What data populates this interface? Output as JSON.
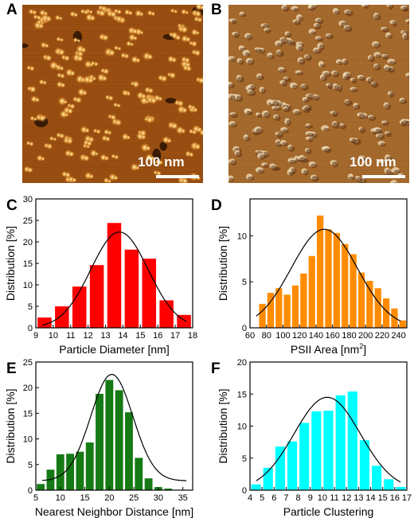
{
  "images": [
    {
      "panel": "A",
      "scale_label": "100 nm",
      "style": "afm-height"
    },
    {
      "panel": "B",
      "scale_label": "100 nm",
      "style": "afm-amplitude"
    }
  ],
  "chart_data": [
    {
      "panel": "C",
      "type": "bar",
      "bar_color": "#ff0000",
      "xlabel": "Particle Diameter [nm]",
      "ylabel": "Distribution [%]",
      "xlim": [
        9,
        18
      ],
      "ylim": [
        0,
        30
      ],
      "xticks": [
        9,
        10,
        11,
        12,
        13,
        14,
        15,
        16,
        17,
        18
      ],
      "yticks": [
        0,
        5,
        10,
        15,
        20,
        25,
        30
      ],
      "bin_width": 1,
      "x": [
        9.5,
        10.5,
        11.5,
        12.5,
        13.5,
        14.5,
        15.5,
        16.5,
        17.5
      ],
      "values": [
        2.4,
        5.0,
        9.6,
        14.6,
        24.4,
        18.2,
        16.1,
        6.4,
        3.0
      ],
      "fit": {
        "type": "gaussian",
        "center": 13.8,
        "sigma": 1.65,
        "amplitude": 22.3
      }
    },
    {
      "panel": "D",
      "type": "bar",
      "bar_color": "#ff8c00",
      "xlabel": "PSII Area [nm",
      "xlabel_sup": "2",
      "xlabel_end": "]",
      "ylabel": "Distribution [%]",
      "xlim": [
        60,
        250
      ],
      "ylim": [
        0,
        14
      ],
      "xticks": [
        60,
        80,
        100,
        120,
        140,
        160,
        180,
        200,
        220,
        240
      ],
      "yticks": [
        0,
        5,
        10
      ],
      "bin_width": 10,
      "x": [
        75,
        85,
        95,
        105,
        115,
        125,
        135,
        145,
        155,
        165,
        175,
        185,
        195,
        205,
        215,
        225,
        235,
        245
      ],
      "values": [
        2.6,
        3.8,
        4.3,
        3.6,
        4.6,
        5.9,
        7.8,
        12.2,
        10.7,
        10.3,
        9.1,
        8.0,
        6.0,
        5.1,
        4.3,
        3.2,
        2.1,
        0.8
      ],
      "fit": {
        "type": "gaussian",
        "center": 150,
        "sigma": 40,
        "amplitude": 10.7
      }
    },
    {
      "panel": "E",
      "type": "bar",
      "bar_color": "#157a15",
      "xlabel": "Nearest Neighbor Distance [nm]",
      "ylabel": "Distribution [%]",
      "xlim": [
        5,
        37
      ],
      "ylim": [
        0,
        25
      ],
      "xticks": [
        5,
        10,
        15,
        20,
        25,
        30,
        35
      ],
      "yticks": [
        0,
        5,
        10,
        15,
        20,
        25
      ],
      "bin_width": 2,
      "x": [
        6,
        8,
        10,
        12,
        14,
        16,
        18,
        20,
        22,
        24,
        26,
        28,
        30,
        32,
        34
      ],
      "values": [
        1.2,
        4.0,
        7.0,
        7.1,
        7.5,
        9.3,
        18.8,
        21.5,
        19.5,
        15.2,
        6.3,
        2.3,
        0.6,
        0.3,
        0
      ],
      "fit": {
        "type": "gaussian",
        "center": 20.5,
        "sigma": 4.3,
        "amplitude": 20.8,
        "baseline": 1.8
      }
    },
    {
      "panel": "F",
      "type": "bar",
      "bar_color": "#00ffff",
      "xlabel": "Particle Clustering",
      "ylabel": "Distribution [%]",
      "xlim": [
        4,
        17
      ],
      "ylim": [
        0,
        20
      ],
      "xticks": [
        4,
        5,
        6,
        7,
        8,
        9,
        10,
        11,
        12,
        13,
        14,
        15,
        16,
        17
      ],
      "yticks": [
        0,
        5,
        10,
        15,
        20
      ],
      "bin_width": 1,
      "x": [
        4.5,
        5.5,
        6.5,
        7.5,
        8.5,
        9.5,
        10.5,
        11.5,
        12.5,
        13.5,
        14.5,
        15.5,
        16.5
      ],
      "values": [
        0.9,
        3.5,
        6.8,
        7.6,
        10.5,
        12.3,
        12.4,
        14.8,
        15.4,
        7.8,
        3.8,
        1.7,
        0.5
      ],
      "fit": {
        "type": "gaussian",
        "center": 10.4,
        "sigma": 2.75,
        "amplitude": 14.5
      }
    }
  ]
}
